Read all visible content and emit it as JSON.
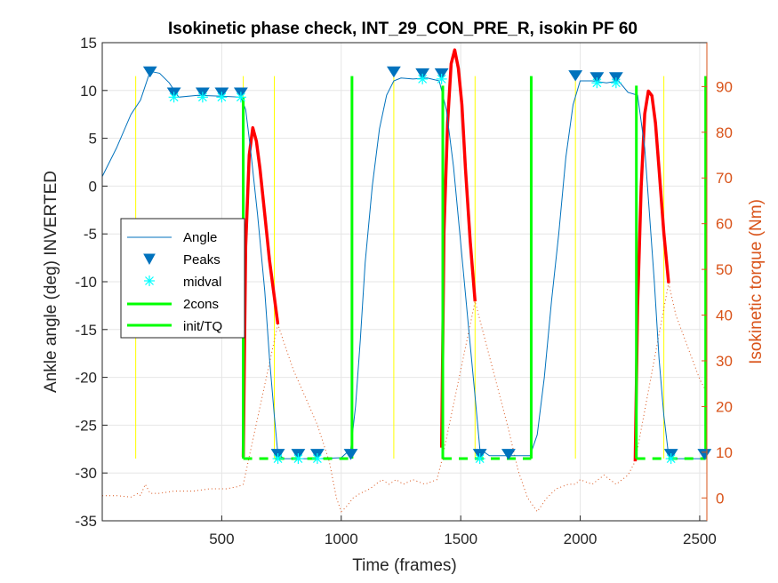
{
  "chart_data": {
    "type": "line",
    "title": "Isokinetic phase check, INT_29_CON_PRE_R, isokin PF 60",
    "xlabel": "Time (frames)",
    "ylabel": "Ankle angle (deg) INVERTED",
    "y2label": "Isokinetic torque (Nm)",
    "xlim": [
      0,
      2530
    ],
    "ylim": [
      -35,
      15
    ],
    "y2lim": [
      -5,
      99.6
    ],
    "xticks": [
      500,
      1000,
      1500,
      2000,
      2500
    ],
    "yticks": [
      -35,
      -30,
      -25,
      -20,
      -15,
      -10,
      -5,
      0,
      5,
      10,
      15
    ],
    "y2ticks": [
      0,
      10,
      20,
      30,
      40,
      50,
      60,
      70,
      80,
      90
    ],
    "grid": true,
    "legend_position": "middle-left",
    "colors": {
      "angle": "#0072bd",
      "peaks": "#0072bd",
      "midval": "#00ffff",
      "cons": "#00ff00",
      "torque": "#ff0000",
      "torque_faint": "#d95319",
      "yellow": "#ffff00",
      "axis_right": "#d95319"
    },
    "legend": [
      "Angle",
      "Peaks",
      "midval",
      "2cons",
      "init/TQ"
    ],
    "angle": {
      "x": [
        0,
        60,
        120,
        160,
        200,
        240,
        280,
        320,
        400,
        500,
        580,
        600,
        620,
        650,
        680,
        700,
        720,
        735,
        760,
        800,
        900,
        1000,
        1040,
        1060,
        1080,
        1100,
        1130,
        1160,
        1190,
        1220,
        1250,
        1300,
        1360,
        1410,
        1440,
        1470,
        1500,
        1530,
        1560,
        1580,
        1620,
        1700,
        1790,
        1820,
        1850,
        1880,
        1910,
        1940,
        1970,
        2000,
        2050,
        2110,
        2160,
        2200,
        2240,
        2270,
        2290,
        2310,
        2330,
        2350,
        2370,
        2400,
        2450,
        2530
      ],
      "y": [
        1,
        4,
        7.5,
        9,
        12,
        11.8,
        10.8,
        9.3,
        9.5,
        9.4,
        9.3,
        8,
        4,
        -3,
        -11,
        -18,
        -24,
        -28,
        -28.5,
        -28.5,
        -28.5,
        -28.4,
        -27.5,
        -23,
        -16,
        -8,
        0,
        6,
        9.5,
        11,
        11.3,
        11.2,
        11.3,
        11,
        8,
        2,
        -6,
        -14,
        -22,
        -27.5,
        -28.2,
        -28.2,
        -28.2,
        -26,
        -20,
        -12,
        -5,
        3,
        8.5,
        11,
        11,
        10.8,
        11,
        9.8,
        9.5,
        4,
        -3,
        -10,
        -18,
        -24,
        -28.2,
        -28.5,
        -28.5,
        -28.5
      ]
    },
    "peaks": {
      "x": [
        200,
        300,
        420,
        500,
        580,
        735,
        820,
        900,
        1040,
        1220,
        1340,
        1420,
        1580,
        1700,
        1980,
        2070,
        2150,
        2380,
        2520
      ],
      "y": [
        12,
        9.8,
        9.8,
        9.8,
        9.8,
        -28,
        -28,
        -28,
        -28,
        12,
        11.8,
        11.8,
        -28,
        -28,
        11.6,
        11.4,
        11.4,
        -28,
        -28
      ]
    },
    "midval": {
      "x": [
        300,
        420,
        500,
        580,
        735,
        820,
        900,
        1340,
        1420,
        1580,
        2070,
        2150,
        2380
      ],
      "y": [
        9.3,
        9.3,
        9.3,
        9.3,
        -28.5,
        -28.5,
        -28.5,
        11.2,
        11.2,
        -28.5,
        10.8,
        10.8,
        -28.5
      ]
    },
    "cons_vertical": [
      {
        "x": 590,
        "y1": -28.5,
        "y2": 9.3
      },
      {
        "x": 1045,
        "y1": -28.5,
        "y2": 11.5
      },
      {
        "x": 1425,
        "y1": -28.5,
        "y2": 10.5
      },
      {
        "x": 1795,
        "y1": -28.5,
        "y2": 11.5
      },
      {
        "x": 2235,
        "y1": -28.5,
        "y2": 10.5
      },
      {
        "x": 2525,
        "y1": -28.5,
        "y2": 11.5
      }
    ],
    "cons_horizontal": [
      {
        "x1": 590,
        "x2": 1045,
        "y": -28.5
      },
      {
        "x1": 1425,
        "x2": 1795,
        "y": -28.5
      },
      {
        "x1": 2235,
        "x2": 2525,
        "y": -28.5
      }
    ],
    "yellow_lines": [
      140,
      590,
      720,
      1220,
      1560,
      1980,
      2350
    ],
    "yellow_range": [
      -28.5,
      11.5
    ],
    "torque_active": [
      {
        "x": [
          590,
          600,
          615,
          630,
          645,
          660,
          680,
          700,
          720,
          735
        ],
        "y": [
          9,
          55,
          75,
          81,
          78,
          72,
          62,
          52,
          44,
          38
        ]
      },
      {
        "x": [
          1420,
          1430,
          1445,
          1460,
          1475,
          1490,
          1505,
          1520,
          1540,
          1560
        ],
        "y": [
          11,
          58,
          82,
          95,
          98,
          94,
          86,
          72,
          56,
          43
        ]
      },
      {
        "x": [
          2230,
          2240,
          2255,
          2270,
          2285,
          2300,
          2315,
          2330,
          2350,
          2370
        ],
        "y": [
          8,
          42,
          68,
          84,
          89,
          88,
          82,
          72,
          58,
          47
        ]
      }
    ],
    "torque_passive": {
      "x": [
        0,
        60,
        120,
        150,
        160,
        180,
        200,
        240,
        300,
        380,
        450,
        520,
        570,
        590,
        735,
        760,
        800,
        850,
        900,
        950,
        980,
        1000,
        1020,
        1050,
        1080,
        1120,
        1170,
        1200,
        1230,
        1260,
        1300,
        1350,
        1400,
        1420,
        1560,
        1600,
        1650,
        1700,
        1740,
        1780,
        1820,
        1860,
        1900,
        1950,
        1980,
        2000,
        2050,
        2100,
        2150,
        2200,
        2230,
        2370,
        2400,
        2450,
        2500,
        2530
      ],
      "y": [
        0.5,
        0.5,
        0.2,
        1,
        0.5,
        3,
        1,
        1,
        1.5,
        1.5,
        2,
        2,
        2.5,
        3,
        38,
        34,
        28,
        22,
        16,
        8,
        0,
        -3,
        -2,
        0,
        1,
        2,
        4,
        3,
        4,
        3,
        4,
        3,
        4,
        8,
        43,
        35,
        25,
        15,
        6,
        0,
        -3,
        0,
        2,
        3,
        3,
        4,
        3,
        5,
        3,
        5,
        8,
        47,
        40,
        33,
        26,
        23
      ]
    }
  }
}
